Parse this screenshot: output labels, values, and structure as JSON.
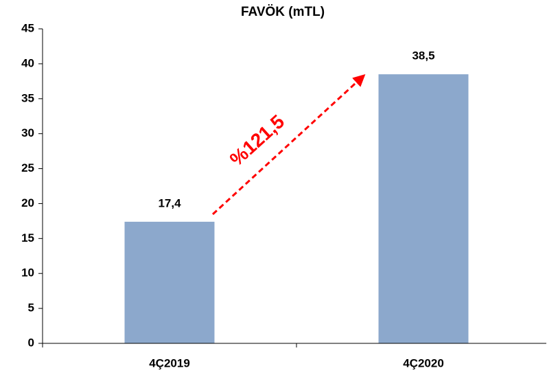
{
  "chart_data": {
    "type": "bar",
    "title": "FAVÖK  (mTL)",
    "categories": [
      "4Ç2019",
      "4Ç2020"
    ],
    "values": [
      17.4,
      38.5
    ],
    "value_labels": [
      "17,4",
      "38,5"
    ],
    "color": "#8ca8cc",
    "ylim": [
      0,
      45
    ],
    "yticks": [
      0,
      5,
      10,
      15,
      20,
      25,
      30,
      35,
      40,
      45
    ],
    "annotation": "%121,5",
    "annotation_color": "#ff0000"
  }
}
